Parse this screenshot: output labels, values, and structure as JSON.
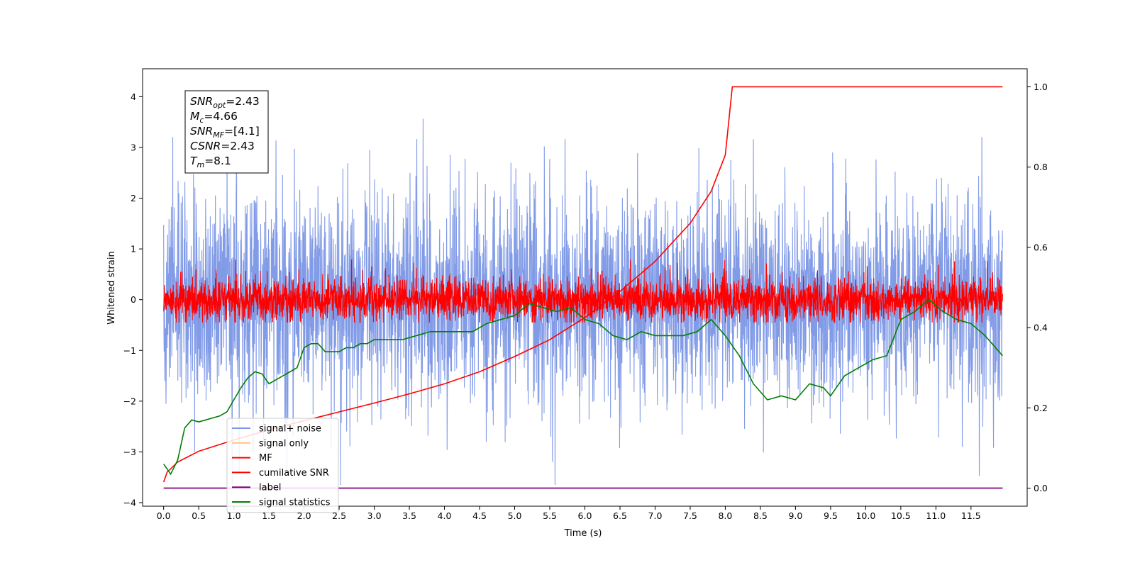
{
  "figure": {
    "background": "#ffffff"
  },
  "chart_data": {
    "type": "line",
    "xlabel": "Time (s)",
    "ylabel": "Whitened strain",
    "xlim": [
      -0.3,
      12.3
    ],
    "ylim": [
      -4.07,
      4.55
    ],
    "y2lim": [
      -0.045,
      1.045
    ],
    "x_ticks": [
      0.0,
      0.5,
      1.0,
      1.5,
      2.0,
      2.5,
      3.0,
      3.5,
      4.0,
      4.5,
      5.0,
      5.5,
      6.0,
      6.5,
      7.0,
      7.5,
      8.0,
      8.5,
      9.0,
      9.5,
      10.0,
      10.5,
      11.0,
      11.5
    ],
    "x_tick_labels": [
      "0.0",
      "0.5",
      "1.0",
      "1.5",
      "2.0",
      "2.5",
      "3.0",
      "3.5",
      "4.0",
      "4.5",
      "5.0",
      "5.5",
      "6.0",
      "6.5",
      "7.0",
      "7.5",
      "8.0",
      "8.5",
      "9.0",
      "9.5",
      "10.0",
      "10.5",
      "11.0",
      "11.5"
    ],
    "y_ticks": [
      -4,
      -3,
      -2,
      -1,
      0,
      1,
      2,
      3,
      4
    ],
    "y_tick_labels": [
      "−4",
      "−3",
      "−2",
      "−1",
      "0",
      "1",
      "2",
      "3",
      "4"
    ],
    "y2_ticks": [
      0.0,
      0.2,
      0.4,
      0.6,
      0.8,
      1.0
    ],
    "y2_tick_labels": [
      "0.0",
      "0.2",
      "0.4",
      "0.6",
      "0.8",
      "1.0"
    ],
    "annotation": [
      {
        "base": "SNR",
        "sub": "opt",
        "rest": "=2.43"
      },
      {
        "base": "M",
        "sub": "c",
        "rest": "=4.66"
      },
      {
        "base": "SNR",
        "sub": "MF",
        "rest": "=[4.1]"
      },
      {
        "base": "CSNR",
        "sub": "",
        "rest": "=2.43"
      },
      {
        "base": "T",
        "sub": "m",
        "rest": "=8.1"
      }
    ],
    "legend": {
      "placement": "lower-left",
      "entries": [
        {
          "label": "signal+ noise",
          "color": "#7b96e6"
        },
        {
          "label": "signal only",
          "color": "#ffc27f"
        },
        {
          "label": "MF",
          "color": "#ff0000"
        },
        {
          "label": "cumilative SNR",
          "color": "#ff0000"
        },
        {
          "label": "label",
          "color": "#800080"
        },
        {
          "label": "signal statistics",
          "color": "#008000"
        }
      ]
    },
    "series": [
      {
        "name": "signal+ noise",
        "axis": "left",
        "color": "#7b96e6",
        "style": "dense noise trace, x from 0.0 to 11.95 s",
        "x_range": [
          0.0,
          11.95
        ],
        "typical_range": [
          -2.2,
          2.3
        ],
        "extreme_range": [
          -3.65,
          4.15
        ]
      },
      {
        "name": "MF",
        "axis": "left",
        "color": "#ff0000",
        "style": "dense noise trace, x from 0.0 to 11.95 s",
        "x_range": [
          0.0,
          11.95
        ],
        "typical_range": [
          -0.4,
          0.55
        ],
        "extreme_range": [
          -0.45,
          0.95
        ]
      },
      {
        "name": "cumilative SNR",
        "axis": "right",
        "color": "#ff0000",
        "x": [
          0.0,
          0.05,
          0.2,
          0.5,
          1.0,
          1.5,
          2.0,
          2.5,
          3.0,
          3.5,
          4.0,
          4.5,
          5.0,
          5.5,
          6.0,
          6.5,
          7.0,
          7.5,
          7.8,
          8.0,
          8.1,
          8.2,
          11.95
        ],
        "y": [
          0.015,
          0.04,
          0.065,
          0.092,
          0.12,
          0.145,
          0.168,
          0.19,
          0.212,
          0.235,
          0.26,
          0.29,
          0.328,
          0.37,
          0.425,
          0.49,
          0.565,
          0.66,
          0.74,
          0.83,
          1.0,
          1.0,
          1.0
        ]
      },
      {
        "name": "label",
        "axis": "right",
        "color": "#800080",
        "x": [
          0.0,
          11.95
        ],
        "y": [
          0.0,
          0.0
        ]
      },
      {
        "name": "signal statistics",
        "axis": "right",
        "color": "#008000",
        "x": [
          0.0,
          0.1,
          0.2,
          0.3,
          0.4,
          0.5,
          0.6,
          0.7,
          0.8,
          0.9,
          1.0,
          1.1,
          1.2,
          1.3,
          1.4,
          1.5,
          1.6,
          1.7,
          1.8,
          1.9,
          2.0,
          2.1,
          2.2,
          2.3,
          2.4,
          2.5,
          2.6,
          2.7,
          2.8,
          2.9,
          3.0,
          3.2,
          3.4,
          3.6,
          3.8,
          4.0,
          4.2,
          4.4,
          4.6,
          4.8,
          5.0,
          5.2,
          5.4,
          5.6,
          5.8,
          6.0,
          6.2,
          6.4,
          6.6,
          6.8,
          7.0,
          7.2,
          7.4,
          7.6,
          7.8,
          7.9,
          8.0,
          8.2,
          8.4,
          8.6,
          8.8,
          9.0,
          9.2,
          9.4,
          9.5,
          9.7,
          9.9,
          10.1,
          10.3,
          10.5,
          10.7,
          10.9,
          11.1,
          11.3,
          11.5,
          11.7,
          11.95
        ],
        "y": [
          0.06,
          0.035,
          0.07,
          0.15,
          0.17,
          0.165,
          0.17,
          0.175,
          0.18,
          0.19,
          0.22,
          0.25,
          0.275,
          0.29,
          0.285,
          0.26,
          0.27,
          0.28,
          0.29,
          0.3,
          0.35,
          0.36,
          0.36,
          0.34,
          0.34,
          0.34,
          0.35,
          0.35,
          0.36,
          0.36,
          0.37,
          0.37,
          0.37,
          0.38,
          0.39,
          0.39,
          0.39,
          0.39,
          0.41,
          0.42,
          0.43,
          0.46,
          0.45,
          0.44,
          0.45,
          0.42,
          0.41,
          0.38,
          0.37,
          0.39,
          0.38,
          0.38,
          0.38,
          0.39,
          0.42,
          0.4,
          0.38,
          0.33,
          0.26,
          0.22,
          0.23,
          0.22,
          0.26,
          0.25,
          0.23,
          0.28,
          0.3,
          0.32,
          0.33,
          0.42,
          0.44,
          0.47,
          0.44,
          0.42,
          0.41,
          0.38,
          0.33
        ]
      }
    ]
  }
}
